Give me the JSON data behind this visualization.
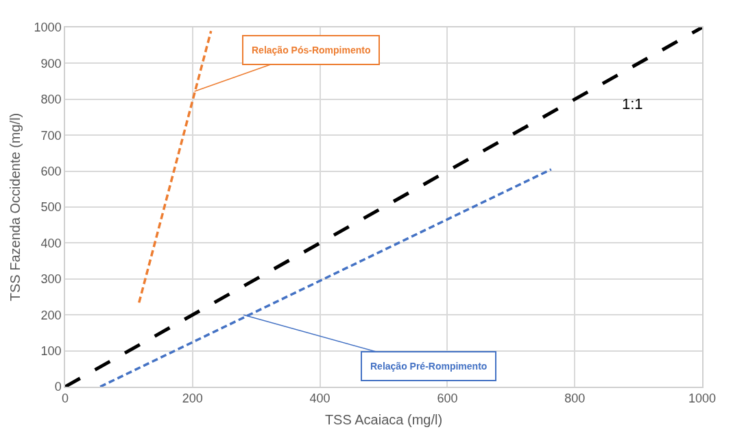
{
  "chart_data": {
    "type": "line",
    "xlabel": "TSS Acaiaca (mg/l)",
    "ylabel": "TSS Fazenda Occidente (mg/l)",
    "series": [
      {
        "color": "#ed7d31",
        "x": [
          116,
          229
        ],
        "values": [
          234,
          990
        ],
        "line_style": "dashed"
      },
      {
        "color": "#4472c4",
        "x": [
          55,
          763
        ],
        "values": [
          0,
          605
        ],
        "line_style": "dashed"
      },
      {
        "color": "#000000",
        "x": [
          0,
          1000
        ],
        "values": [
          0,
          1000
        ],
        "line_style": "dashed"
      }
    ],
    "annotations": [
      {
        "text": "Relação Pós-Rompimento",
        "x": 203,
        "y": 822
      },
      {
        "text": "Relação Pré-Rompimento",
        "x": 280,
        "y": 200
      },
      "1:1"
    ],
    "xlim": [
      0,
      1000
    ],
    "ylim": [
      0,
      1000
    ],
    "xticks": [
      0,
      200,
      400,
      600,
      800,
      1000
    ],
    "yticks": [
      0,
      100,
      200,
      300,
      400,
      500,
      600,
      700,
      800,
      900,
      1000
    ],
    "grid": true,
    "marker": "none"
  }
}
